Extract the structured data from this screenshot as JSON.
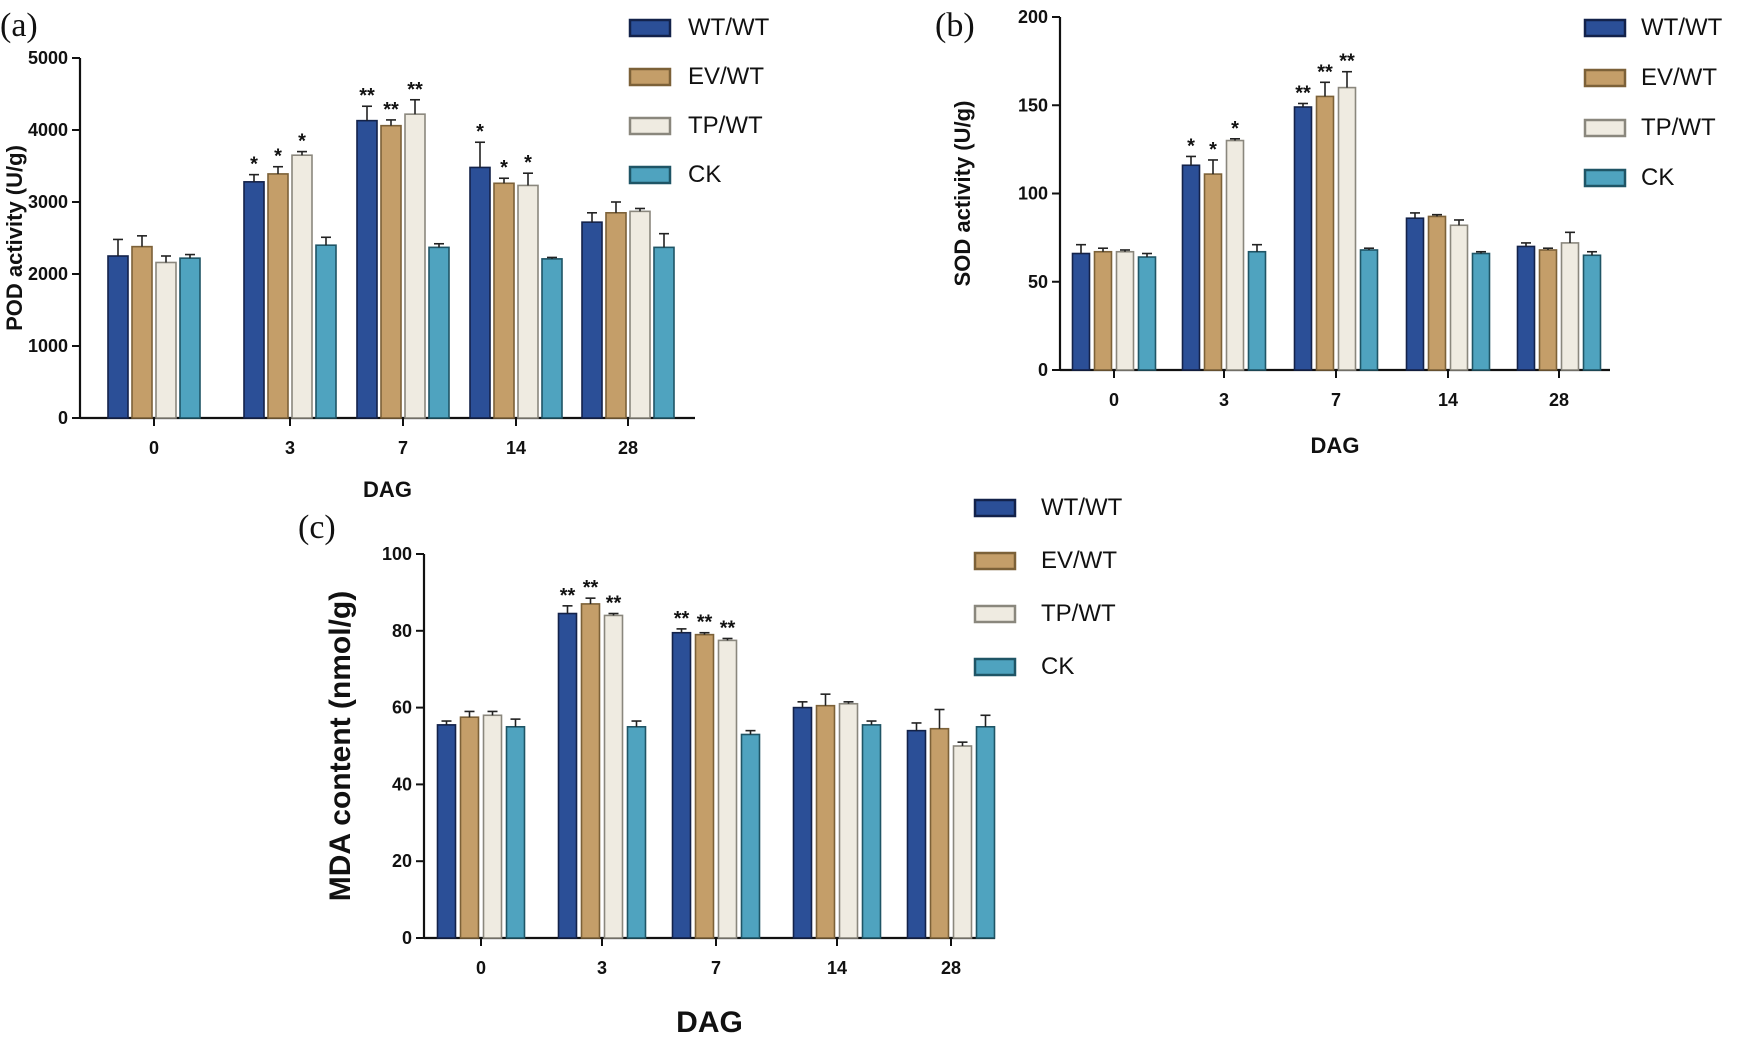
{
  "figure": {
    "panels": [
      "(a)",
      "(b)",
      "(c)"
    ]
  },
  "series_styles": {
    "WT/WT": {
      "fill": "#2b4f97",
      "stroke": "#13224a"
    },
    "EV/WT": {
      "fill": "#c49e69",
      "stroke": "#7c6138"
    },
    "TP/WT": {
      "fill": "#efebe1",
      "stroke": "#8a877d"
    },
    "CK": {
      "fill": "#4fa3bf",
      "stroke": "#1f5566"
    }
  },
  "chart_data": [
    {
      "panel": "(a)",
      "type": "bar",
      "title": "",
      "xlabel": "DAG",
      "ylabel": "POD activity (U/g)",
      "categories": [
        "0",
        "3",
        "7",
        "14",
        "28"
      ],
      "ylim": [
        0,
        5000
      ],
      "yticks": [
        "0",
        "1000",
        "2000",
        "3000",
        "4000",
        "5000"
      ],
      "legend": "top-right",
      "series": [
        {
          "name": "WT/WT",
          "values": [
            2250,
            3280,
            4130,
            3480,
            2720
          ],
          "errors": [
            230,
            100,
            200,
            350,
            130
          ],
          "sig": [
            "",
            "*",
            "**",
            "*",
            ""
          ]
        },
        {
          "name": "EV/WT",
          "values": [
            2380,
            3390,
            4060,
            3260,
            2850
          ],
          "errors": [
            150,
            100,
            80,
            70,
            150
          ],
          "sig": [
            "",
            "*",
            "**",
            "*",
            ""
          ]
        },
        {
          "name": "TP/WT",
          "values": [
            2160,
            3650,
            4220,
            3230,
            2870
          ],
          "errors": [
            90,
            50,
            200,
            170,
            40
          ],
          "sig": [
            "",
            "*",
            "**",
            "*",
            ""
          ]
        },
        {
          "name": "CK",
          "values": [
            2220,
            2400,
            2370,
            2210,
            2370
          ],
          "errors": [
            50,
            110,
            50,
            20,
            190
          ],
          "sig": [
            "",
            "",
            "",
            "",
            ""
          ]
        }
      ]
    },
    {
      "panel": "(b)",
      "type": "bar",
      "title": "",
      "xlabel": "DAG",
      "ylabel": "SOD activity (U/g)",
      "categories": [
        "0",
        "3",
        "7",
        "14",
        "28"
      ],
      "ylim": [
        0,
        200
      ],
      "yticks": [
        "0",
        "50",
        "100",
        "150",
        "200"
      ],
      "legend": "top-right",
      "series": [
        {
          "name": "WT/WT",
          "values": [
            66,
            116,
            149,
            86,
            70
          ],
          "errors": [
            5,
            5,
            2,
            3,
            2
          ],
          "sig": [
            "",
            "*",
            "**",
            "",
            ""
          ]
        },
        {
          "name": "EV/WT",
          "values": [
            67,
            111,
            155,
            87,
            68
          ],
          "errors": [
            2,
            8,
            8,
            1,
            1
          ],
          "sig": [
            "",
            "*",
            "**",
            "",
            ""
          ]
        },
        {
          "name": "TP/WT",
          "values": [
            67,
            130,
            160,
            82,
            72
          ],
          "errors": [
            1,
            1,
            9,
            3,
            6
          ],
          "sig": [
            "",
            "*",
            "**",
            "",
            ""
          ]
        },
        {
          "name": "CK",
          "values": [
            64,
            67,
            68,
            66,
            65
          ],
          "errors": [
            2,
            4,
            1,
            1,
            2
          ],
          "sig": [
            "",
            "",
            "",
            "",
            ""
          ]
        }
      ]
    },
    {
      "panel": "(c)",
      "type": "bar",
      "title": "",
      "xlabel": "DAG",
      "ylabel": "MDA content (nmol/g)",
      "categories": [
        "0",
        "3",
        "7",
        "14",
        "28"
      ],
      "ylim": [
        0,
        100
      ],
      "yticks": [
        "0",
        "20",
        "40",
        "60",
        "80",
        "100"
      ],
      "legend": "top-right",
      "series": [
        {
          "name": "WT/WT",
          "values": [
            55.5,
            84.5,
            79.5,
            60,
            54
          ],
          "errors": [
            1,
            2,
            1,
            1.5,
            2
          ],
          "sig": [
            "",
            "**",
            "**",
            "",
            ""
          ]
        },
        {
          "name": "EV/WT",
          "values": [
            57.5,
            87,
            79,
            60.5,
            54.5
          ],
          "errors": [
            1.5,
            1.5,
            0.5,
            3,
            5
          ],
          "sig": [
            "",
            "**",
            "**",
            "",
            ""
          ]
        },
        {
          "name": "TP/WT",
          "values": [
            58,
            84,
            77.5,
            61,
            50
          ],
          "errors": [
            1,
            0.5,
            0.5,
            0.5,
            1
          ],
          "sig": [
            "",
            "**",
            "**",
            "",
            ""
          ]
        },
        {
          "name": "CK",
          "values": [
            55,
            55,
            53,
            55.5,
            55
          ],
          "errors": [
            2,
            1.5,
            1,
            1,
            3
          ],
          "sig": [
            "",
            "",
            "",
            "",
            ""
          ]
        }
      ]
    }
  ]
}
